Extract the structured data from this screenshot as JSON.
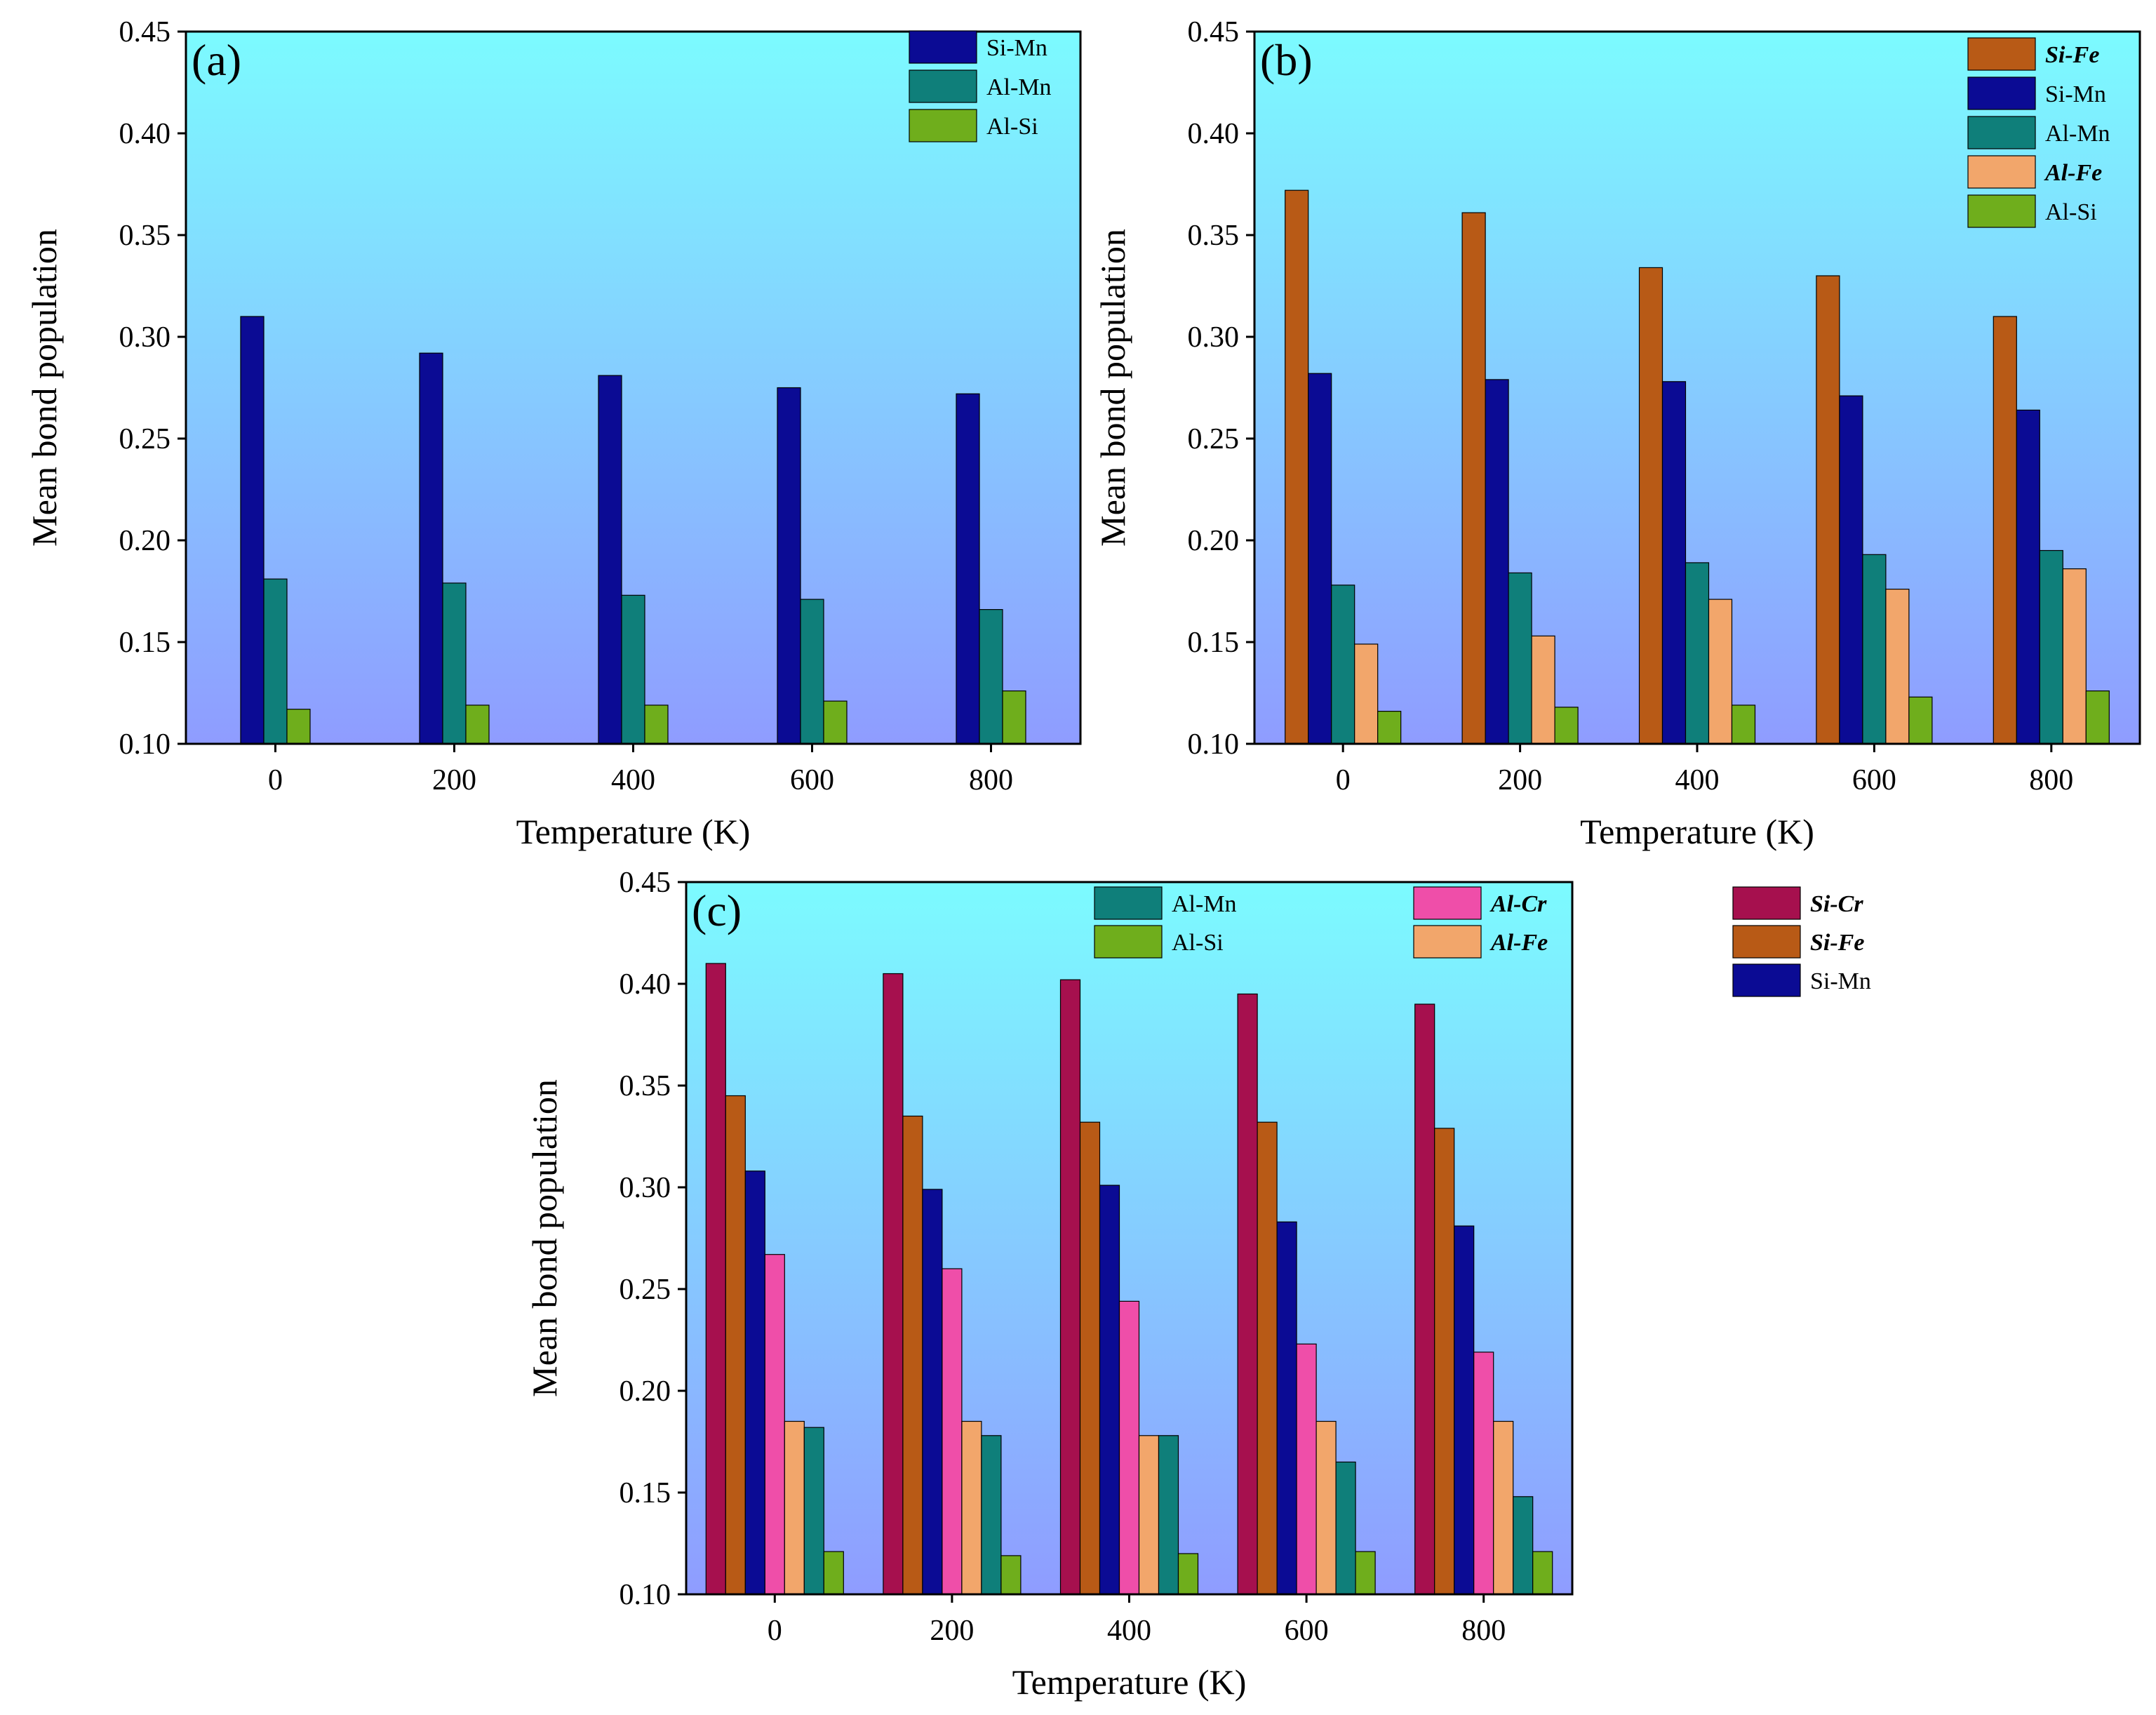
{
  "figure": {
    "background": "#ffffff"
  },
  "colors": {
    "Si-Mn": "#0b0b94",
    "Al-Mn": "#0f7f7a",
    "Al-Si": "#6fae1c",
    "Si-Fe": "#b85a16",
    "Al-Fe": "#f2a66b",
    "Al-Cr": "#ef4ea9",
    "Si-Cr": "#a6104e",
    "plot_gradient_top": "#7cfbff",
    "plot_gradient_bottom": "#8f9cff"
  },
  "chart_data": [
    {
      "type": "bar",
      "panel": "(a)",
      "xlabel": "Temperature (K)",
      "ylabel": "Mean bond population",
      "ylim": [
        0.1,
        0.45
      ],
      "yticks": [
        "0.10",
        "0.15",
        "0.20",
        "0.25",
        "0.30",
        "0.35",
        "0.40",
        "0.45"
      ],
      "categories": [
        "0",
        "200",
        "400",
        "600",
        "800"
      ],
      "legend_position": "top-right",
      "series": [
        {
          "name": "Si-Mn",
          "values": [
            0.31,
            0.292,
            0.281,
            0.275,
            0.272
          ]
        },
        {
          "name": "Al-Mn",
          "values": [
            0.181,
            0.179,
            0.173,
            0.171,
            0.166
          ]
        },
        {
          "name": "Al-Si",
          "values": [
            0.117,
            0.119,
            0.119,
            0.121,
            0.126
          ]
        }
      ]
    },
    {
      "type": "bar",
      "panel": "(b)",
      "xlabel": "Temperature (K)",
      "ylabel": "Mean bond population",
      "ylim": [
        0.1,
        0.45
      ],
      "yticks": [
        "0.10",
        "0.15",
        "0.20",
        "0.25",
        "0.30",
        "0.35",
        "0.40",
        "0.45"
      ],
      "categories": [
        "0",
        "200",
        "400",
        "600",
        "800"
      ],
      "legend_position": "top-right",
      "series": [
        {
          "name": "Si-Fe",
          "values": [
            0.372,
            0.361,
            0.334,
            0.33,
            0.31
          ],
          "emphasis": true
        },
        {
          "name": "Si-Mn",
          "values": [
            0.282,
            0.279,
            0.278,
            0.271,
            0.264
          ]
        },
        {
          "name": "Al-Mn",
          "values": [
            0.178,
            0.184,
            0.189,
            0.193,
            0.195
          ]
        },
        {
          "name": "Al-Fe",
          "values": [
            0.149,
            0.153,
            0.171,
            0.176,
            0.186
          ],
          "emphasis": true
        },
        {
          "name": "Al-Si",
          "values": [
            0.116,
            0.118,
            0.119,
            0.123,
            0.126
          ]
        }
      ]
    },
    {
      "type": "bar",
      "panel": "(c)",
      "xlabel": "Temperature (K)",
      "ylabel": "Mean bond population",
      "ylim": [
        0.1,
        0.45
      ],
      "yticks": [
        "0.10",
        "0.15",
        "0.20",
        "0.25",
        "0.30",
        "0.35",
        "0.40",
        "0.45"
      ],
      "categories": [
        "0",
        "200",
        "400",
        "600",
        "800"
      ],
      "legend_position": "top-right",
      "legend_columns": [
        [
          "Al-Mn",
          "Al-Si"
        ],
        [
          "Al-Cr",
          "Al-Fe"
        ],
        [
          "Si-Cr",
          "Si-Fe",
          "Si-Mn"
        ]
      ],
      "series": [
        {
          "name": "Si-Cr",
          "values": [
            0.41,
            0.405,
            0.402,
            0.395,
            0.39
          ],
          "emphasis": true
        },
        {
          "name": "Si-Fe",
          "values": [
            0.345,
            0.335,
            0.332,
            0.332,
            0.329
          ],
          "emphasis": true
        },
        {
          "name": "Si-Mn",
          "values": [
            0.308,
            0.299,
            0.301,
            0.283,
            0.281
          ]
        },
        {
          "name": "Al-Cr",
          "values": [
            0.267,
            0.26,
            0.244,
            0.223,
            0.219
          ],
          "emphasis": true
        },
        {
          "name": "Al-Fe",
          "values": [
            0.185,
            0.185,
            0.178,
            0.185,
            0.185
          ],
          "emphasis": true
        },
        {
          "name": "Al-Mn",
          "values": [
            0.182,
            0.178,
            0.178,
            0.165,
            0.148
          ]
        },
        {
          "name": "Al-Si",
          "values": [
            0.121,
            0.119,
            0.12,
            0.121,
            0.121
          ]
        }
      ]
    }
  ]
}
